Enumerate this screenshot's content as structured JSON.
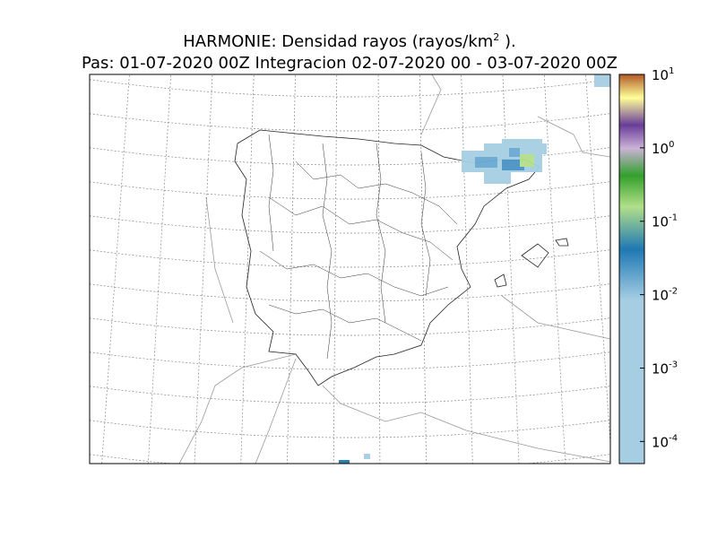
{
  "title": {
    "line1": {
      "text": "HARMONIE: Densidad rayos  (rayos/km",
      "superscript": "2",
      "suffix": " )."
    },
    "line2": "Pas: 01-07-2020 00Z Integracion 02-07-2020 00 - 03-07-2020 00Z"
  },
  "colorbar": {
    "scale": "log",
    "range": [
      5e-05,
      10
    ],
    "ticks": [
      {
        "value": 10,
        "label": "10",
        "exponent": "1"
      },
      {
        "value": 1,
        "label": "10",
        "exponent": "0"
      },
      {
        "value": 0.1,
        "label": "10",
        "exponent": "-1"
      },
      {
        "value": 0.01,
        "label": "10",
        "exponent": "-2"
      },
      {
        "value": 0.001,
        "label": "10",
        "exponent": "-3"
      },
      {
        "value": 0.0001,
        "label": "10",
        "exponent": "-4"
      }
    ]
  }
}
